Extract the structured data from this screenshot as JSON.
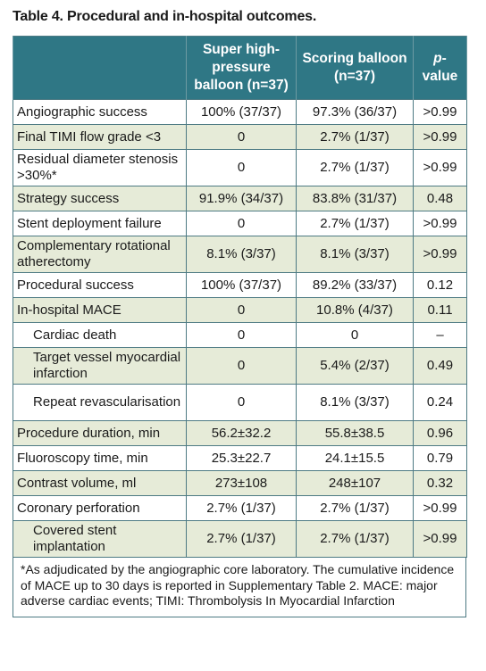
{
  "title": "Table 4. Procedural and in-hospital outcomes.",
  "headers": {
    "col2": "Super high-pressure balloon (n=37)",
    "col3": "Scoring balloon (n=37)",
    "col4_italic": "p",
    "col4_rest": "-value"
  },
  "rows": [
    {
      "label": "Angiographic success",
      "a": "100% (37/37)",
      "b": "97.3% (36/37)",
      "p": ">0.99"
    },
    {
      "label": "Final TIMI flow grade <3",
      "a": "0",
      "b": "2.7% (1/37)",
      "p": ">0.99"
    },
    {
      "label": "Residual diameter stenosis >30%*",
      "a": "0",
      "b": "2.7% (1/37)",
      "p": ">0.99"
    },
    {
      "label": "Strategy success",
      "a": "91.9% (34/37)",
      "b": "83.8% (31/37)",
      "p": "0.48"
    },
    {
      "label": "Stent deployment failure",
      "a": "0",
      "b": "2.7% (1/37)",
      "p": ">0.99"
    },
    {
      "label": "Complementary rotational atherectomy",
      "a": "8.1% (3/37)",
      "b": "8.1% (3/37)",
      "p": ">0.99"
    },
    {
      "label": "Procedural success",
      "a": "100% (37/37)",
      "b": "89.2% (33/37)",
      "p": "0.12"
    },
    {
      "label": "In-hospital MACE",
      "a": "0",
      "b": "10.8% (4/37)",
      "p": "0.11"
    },
    {
      "label": "Cardiac death",
      "a": "0",
      "b": "0",
      "p": "–"
    },
    {
      "label": "Target vessel myocardial infarction",
      "a": "0",
      "b": "5.4% (2/37)",
      "p": "0.49"
    },
    {
      "label": "Repeat revascularisation",
      "a": "0",
      "b": "8.1% (3/37)",
      "p": "0.24"
    },
    {
      "label": "Procedure duration, min",
      "a": "56.2±32.2",
      "b": "55.8±38.5",
      "p": "0.96"
    },
    {
      "label": "Fluoroscopy time, min",
      "a": "25.3±22.7",
      "b": "24.1±15.5",
      "p": "0.79"
    },
    {
      "label": "Contrast volume, ml",
      "a": "273±108",
      "b": "248±107",
      "p": "0.32"
    },
    {
      "label": "Coronary perforation",
      "a": "2.7% (1/37)",
      "b": "2.7% (1/37)",
      "p": ">0.99"
    },
    {
      "label": "Covered stent implantation",
      "a": "2.7% (1/37)",
      "b": "2.7% (1/37)",
      "p": ">0.99"
    }
  ],
  "footnote": "*As adjudicated by the angiographic core laboratory. The cumulative incidence of MACE up to 30 days is reported in Supplementary Table 2. MACE: major adverse cardiac events; TIMI: Thrombolysis In Myocardial Infarction"
}
